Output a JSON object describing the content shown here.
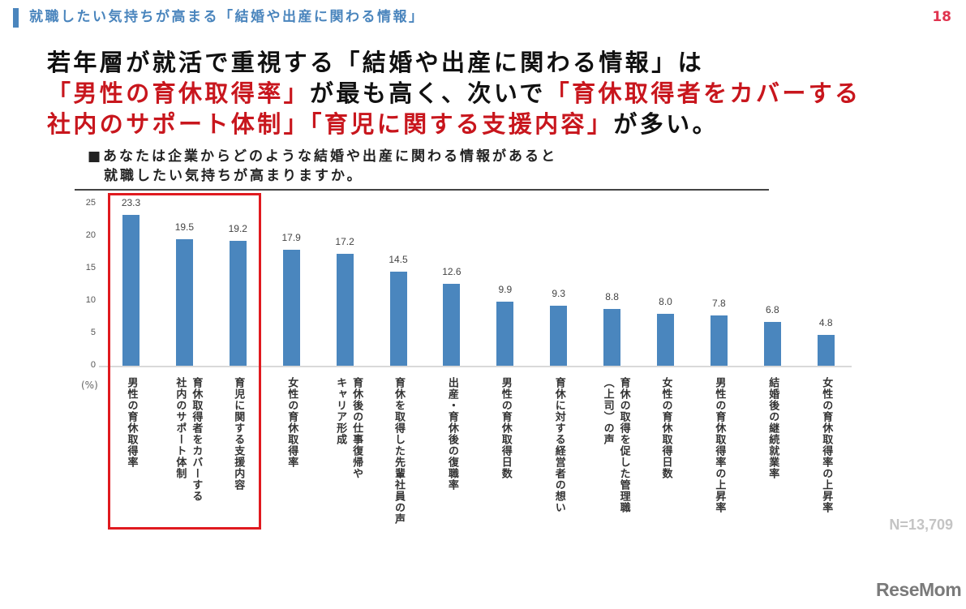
{
  "header": {
    "title": "就職したい気持ちが高まる「結婚や出産に関わる情報」",
    "page_number": "18",
    "accent_color": "#4a85bd"
  },
  "headline": {
    "line1": [
      {
        "text": "若年層が就活で重視する「結婚や出産に関わる情報」は",
        "red": false
      }
    ],
    "line2": [
      {
        "text": "「男性の育休取得率」",
        "red": true
      },
      {
        "text": "が最も高く、次いで",
        "red": false
      },
      {
        "text": "「育休取得者をカバーする",
        "red": true
      }
    ],
    "line3": [
      {
        "text": "社内のサポート体制」「育児に関する支援内容」",
        "red": true
      },
      {
        "text": "が多い。",
        "red": false
      }
    ]
  },
  "question": {
    "line1": "■あなたは企業からどのような結婚や出産に関わる情報があると",
    "line2": "就職したい気持ちが高まりますか。"
  },
  "footer": {
    "sample_size": "N=13,709",
    "logo": "ReseMom"
  },
  "chart_data": {
    "type": "bar",
    "title": "あなたは企業からどのような結婚や出産に関わる情報があると就職したい気持ちが高まりますか。",
    "xlabel": "",
    "ylabel": "(%)",
    "ylim": [
      0,
      25
    ],
    "yticks": [
      "25",
      "20",
      "15",
      "10",
      "5",
      "0"
    ],
    "grid": false,
    "legend": null,
    "bar_color": "#4a86be",
    "highlight": {
      "categories_index": [
        0,
        1,
        2
      ],
      "color": "#e01a1f"
    },
    "categories": [
      "男性の育休取得率",
      "育休取得者をカバーする社内のサポート体制",
      "育児に関する支援内容",
      "女性の育休取得率",
      "育休後の仕事復帰やキャリア形成",
      "育休を取得した先輩社員の声",
      "出産・育休後の復職率",
      "男性の育休取得日数",
      "育休に対する経営者の想い",
      "育休の取得を促した管理職（上司）の声",
      "女性の育休取得日数",
      "男性の育休取得率の上昇率",
      "結婚後の継続就業率",
      "女性の育休取得率の上昇率"
    ],
    "category_lines": [
      [
        "男性の育休取得率"
      ],
      [
        "育休取得者をカバーする",
        "社内のサポート体制"
      ],
      [
        "育児に関する支援内容"
      ],
      [
        "女性の育休取得率"
      ],
      [
        "育休後の仕事復帰や",
        "キャリア形成"
      ],
      [
        "育休を取得した先輩社員の声"
      ],
      [
        "出産・育休後の復職率"
      ],
      [
        "男性の育休取得日数"
      ],
      [
        "育休に対する経営者の想い"
      ],
      [
        "育休の取得を促した管理職",
        "︵上司︶の声"
      ],
      [
        "女性の育休取得日数"
      ],
      [
        "男性の育休取得率の上昇率"
      ],
      [
        "結婚後の継続就業率"
      ],
      [
        "女性の育休取得率の上昇率"
      ]
    ],
    "values": [
      23.3,
      19.5,
      19.2,
      17.9,
      17.2,
      14.5,
      12.6,
      9.9,
      9.3,
      8.8,
      8.0,
      7.8,
      6.8,
      4.8
    ],
    "value_labels": [
      "23.3",
      "19.5",
      "19.2",
      "17.9",
      "17.2",
      "14.5",
      "12.6",
      "9.9",
      "9.3",
      "8.8",
      "8.0",
      "7.8",
      "6.8",
      "4.8"
    ]
  }
}
